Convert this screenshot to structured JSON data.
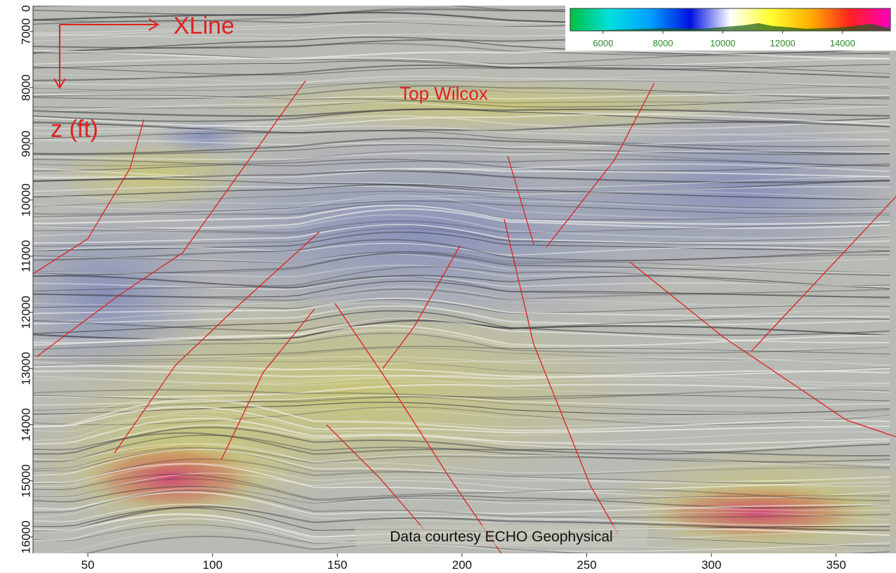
{
  "chart_data": {
    "type": "image",
    "xlim": [
      28,
      374
    ],
    "ylim": [
      6540,
      16290
    ],
    "y_inverted": true,
    "xticks": [
      50,
      100,
      150,
      200,
      250,
      300,
      350
    ],
    "yticks": [
      7000,
      8000,
      9000,
      10000,
      11000,
      12000,
      13000,
      14000,
      15000,
      16000
    ],
    "top_label": "0",
    "annotations": [
      "XLine",
      "z (ft)",
      "Top Wilcox",
      "Data courtesy ECHO Geophysical"
    ],
    "colorbar": {
      "clim": [
        4900,
        15600
      ],
      "ticks": [
        6000,
        8000,
        10000,
        12000,
        14000
      ],
      "colormap": [
        "#00c040",
        "#00e0e0",
        "#00a0ff",
        "#0010e0",
        "#ffffff",
        "#ffff30",
        "#ffb000",
        "#ff2020",
        "#ff00c0"
      ]
    }
  }
}
